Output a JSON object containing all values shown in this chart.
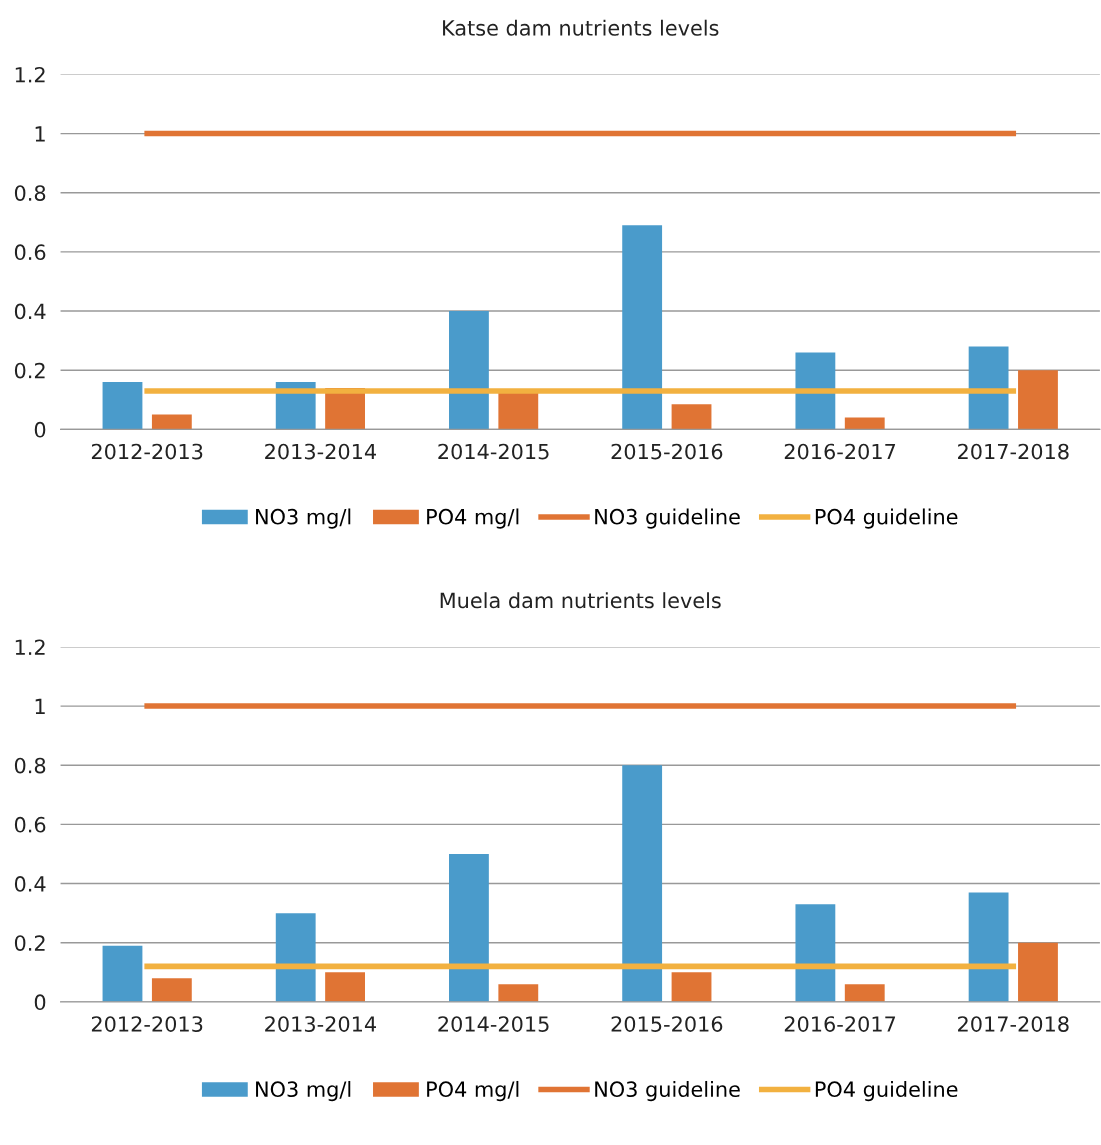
{
  "chart_data": [
    {
      "type": "bar",
      "title": "Katse dam nutrients levels",
      "categories": [
        "2012-2013",
        "2013-2014",
        "2014-2015",
        "2015-2016",
        "2016-2017",
        "2017-2018"
      ],
      "series": [
        {
          "name": "NO3 mg/l",
          "color": "#4a9bcb",
          "values": [
            0.16,
            0.16,
            0.4,
            0.69,
            0.26,
            0.28
          ]
        },
        {
          "name": "PO4 mg/l",
          "color": "#e07434",
          "values": [
            0.05,
            0.14,
            0.13,
            0.085,
            0.04,
            0.2
          ]
        },
        {
          "name": "NO3 guideline",
          "type": "line",
          "color": "#e07434",
          "values": [
            1,
            1,
            1,
            1,
            1,
            1
          ]
        },
        {
          "name": "PO4 guideline",
          "type": "line",
          "color": "#f2b140",
          "values": [
            0.13,
            0.13,
            0.13,
            0.13,
            0.13,
            0.13
          ]
        }
      ],
      "ylim": [
        0,
        1.2
      ],
      "yticks": [
        0,
        0.2,
        0.4,
        0.6,
        0.8,
        1,
        1.2
      ],
      "grid": "y",
      "legend": "bottom"
    },
    {
      "type": "bar",
      "title": "Muela dam nutrients levels",
      "categories": [
        "2012-2013",
        "2013-2014",
        "2014-2015",
        "2015-2016",
        "2016-2017",
        "2017-2018"
      ],
      "series": [
        {
          "name": "NO3 mg/l",
          "color": "#4a9bcb",
          "values": [
            0.19,
            0.3,
            0.5,
            0.8,
            0.33,
            0.37
          ]
        },
        {
          "name": "PO4 mg/l",
          "color": "#e07434",
          "values": [
            0.08,
            0.1,
            0.06,
            0.1,
            0.06,
            0.2
          ]
        },
        {
          "name": "NO3 guideline",
          "type": "line",
          "color": "#e07434",
          "values": [
            1,
            1,
            1,
            1,
            1,
            1
          ]
        },
        {
          "name": "PO4 guideline",
          "type": "line",
          "color": "#f2b140",
          "values": [
            0.12,
            0.12,
            0.12,
            0.12,
            0.12,
            0.12
          ]
        }
      ],
      "ylim": [
        0,
        1.2
      ],
      "yticks": [
        0,
        0.2,
        0.4,
        0.6,
        0.8,
        1,
        1.2
      ],
      "grid": "y",
      "legend": "bottom"
    }
  ]
}
